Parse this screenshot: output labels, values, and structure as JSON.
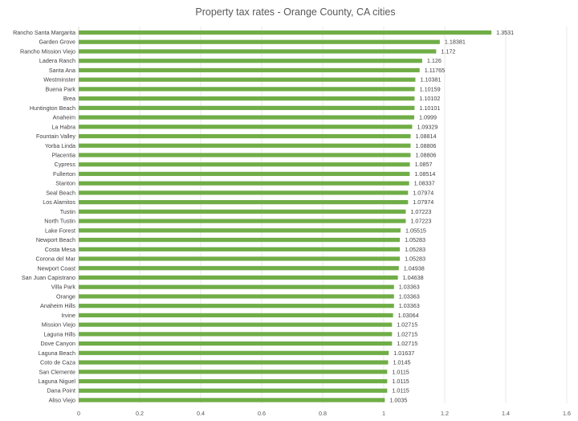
{
  "chart_data": {
    "type": "bar",
    "orientation": "horizontal",
    "title": "Property tax rates - Orange County, CA cities",
    "xlabel": "",
    "ylabel": "",
    "xlim": [
      0,
      1.6
    ],
    "grid": true,
    "legend": "none",
    "bar_color": "#70ad47",
    "x_ticks": [
      "0",
      "0.2",
      "0.4",
      "0.6",
      "0.8",
      "1",
      "1.2",
      "1.4",
      "1.6"
    ],
    "categories": [
      "Rancho Santa Margarita",
      "Garden Grove",
      "Rancho Mission Viejo",
      "Ladera Ranch",
      "Santa Ana",
      "Westminster",
      "Buena Park",
      "Brea",
      "Huntington Beach",
      "Anaheim",
      "La Habra",
      "Fountain Valley",
      "Yorba Linda",
      "Placentia",
      "Cypress",
      "Fullerton",
      "Stanton",
      "Seal Beach",
      "Los Alamitos",
      "Tustin",
      "North Tustin",
      "Lake Forest",
      "Newport Beach",
      "Costa Mesa",
      "Corona del Mar",
      "Newport Coast",
      "San Juan Capistrano",
      "Villa Park",
      "Orange",
      "Anaheim Hills",
      "Irvine",
      "Mission Viejo",
      "Laguna Hills",
      "Dove Canyon",
      "Laguna Beach",
      "Coto de Caza",
      "San Clemente",
      "Laguna Niguel",
      "Dana Point",
      "Aliso Viejo"
    ],
    "values": [
      1.3531,
      1.18381,
      1.172,
      1.126,
      1.11765,
      1.10381,
      1.10159,
      1.10102,
      1.10101,
      1.0999,
      1.09329,
      1.08814,
      1.08806,
      1.08806,
      1.0857,
      1.08514,
      1.08337,
      1.07974,
      1.07974,
      1.07223,
      1.07223,
      1.05515,
      1.05283,
      1.05283,
      1.05283,
      1.04938,
      1.04638,
      1.03363,
      1.03363,
      1.03363,
      1.03064,
      1.02715,
      1.02715,
      1.02715,
      1.01637,
      1.0145,
      1.0115,
      1.0115,
      1.0115,
      1.0035
    ],
    "value_labels": [
      "1.3531",
      "1.18381",
      "1.172",
      "1.126",
      "1.11765",
      "1.10381",
      "1.10159",
      "1.10102",
      "1.10101",
      "1.0999",
      "1.09329",
      "1.08814",
      "1.08806",
      "1.08806",
      "1.0857",
      "1.08514",
      "1.08337",
      "1.07974",
      "1.07974",
      "1.07223",
      "1.07223",
      "1.05515",
      "1.05283",
      "1.05283",
      "1.05283",
      "1.04938",
      "1.04638",
      "1.03363",
      "1.03363",
      "1.03363",
      "1.03064",
      "1.02715",
      "1.02715",
      "1.02715",
      "1.01637",
      "1.0145",
      "1.0115",
      "1.0115",
      "1.0115",
      "1.0035"
    ]
  }
}
